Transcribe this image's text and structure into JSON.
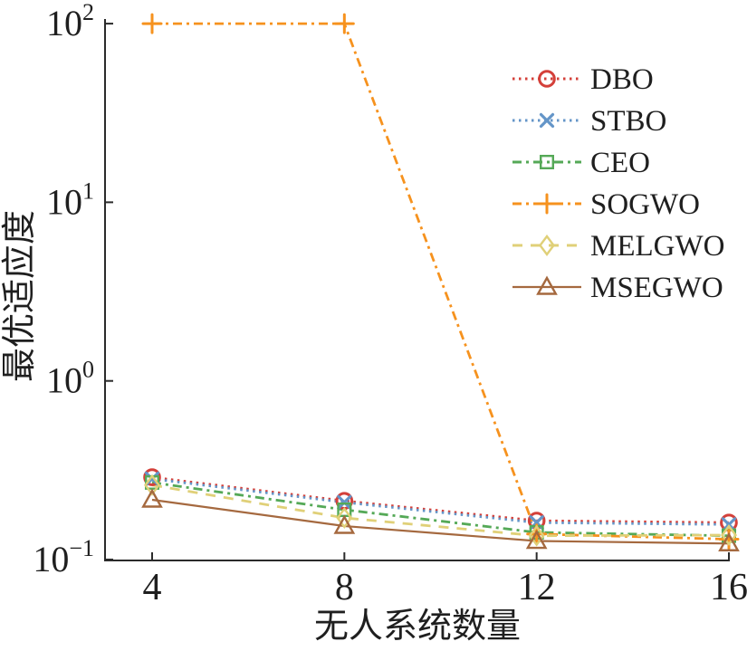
{
  "chart_data": {
    "type": "line",
    "title": "",
    "xlabel": "无人系统数量",
    "ylabel": "最优适应度",
    "x": [
      4,
      8,
      12,
      16
    ],
    "xtick_labels": [
      "4",
      "8",
      "12",
      "16"
    ],
    "yscale": "log",
    "ylim": [
      0.1,
      100
    ],
    "yticks": [
      0.1,
      1,
      10,
      100
    ],
    "ytick_labels": [
      {
        "base": "10",
        "exp": "−1"
      },
      {
        "base": "10",
        "exp": "0"
      },
      {
        "base": "10",
        "exp": "1"
      },
      {
        "base": "10",
        "exp": "2"
      }
    ],
    "grid": false,
    "legend_position": "upper-right-inside",
    "axis_color": "#2b2b2b",
    "series": [
      {
        "name": "DBO",
        "color": "#D4403A",
        "line_style": "dotted",
        "marker": "circle",
        "values": [
          0.289,
          0.213,
          0.165,
          0.161
        ]
      },
      {
        "name": "STBO",
        "color": "#6495C8",
        "line_style": "dotted",
        "marker": "x",
        "values": [
          0.283,
          0.209,
          0.161,
          0.157
        ]
      },
      {
        "name": "CEO",
        "color": "#55A957",
        "line_style": "dashdot",
        "marker": "square",
        "values": [
          0.27,
          0.19,
          0.142,
          0.136
        ]
      },
      {
        "name": "SOGWO",
        "color": "#F6921E",
        "line_style": "dashdot",
        "marker": "plus",
        "values": [
          100,
          100,
          0.139,
          0.13
        ]
      },
      {
        "name": "MELGWO",
        "color": "#E0D078",
        "line_style": "dashed",
        "marker": "diamond",
        "values": [
          0.261,
          0.171,
          0.136,
          0.137
        ]
      },
      {
        "name": "MSEGWO",
        "color": "#A5693F",
        "line_style": "solid",
        "marker": "triangle",
        "values": [
          0.216,
          0.154,
          0.127,
          0.123
        ]
      }
    ]
  }
}
